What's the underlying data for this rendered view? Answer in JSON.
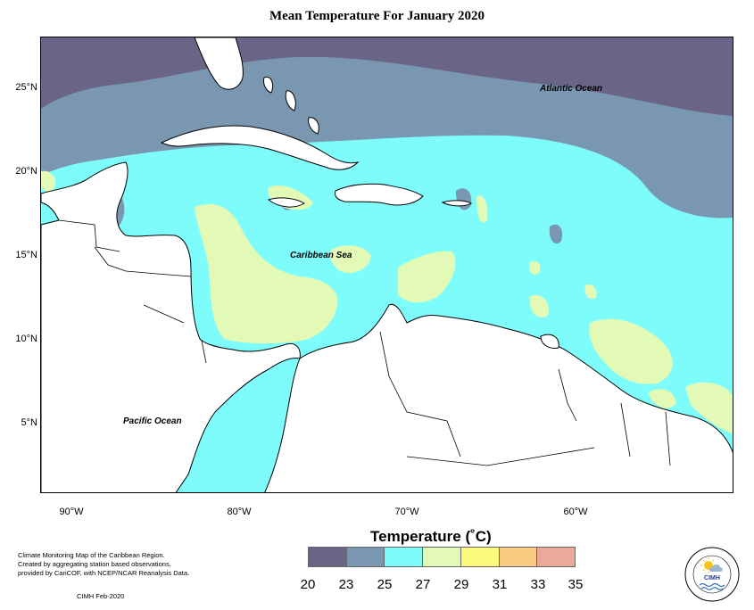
{
  "title": "Mean Temperature For January 2020",
  "colors": {
    "c20_23": "#6a6586",
    "c23_25": "#7a97b2",
    "c25_27": "#7efcfc",
    "c27_29": "#e3fab7",
    "c29_31": "#fbfa7f",
    "c31_33": "#fbcb84",
    "c33_35": "#eca99a",
    "land": "#ffffff",
    "border": "#000000"
  },
  "lat_labels": [
    "25°N",
    "20°N",
    "15°N",
    "10°N",
    "5°N"
  ],
  "lon_labels": [
    "90°W",
    "80°W",
    "70°W",
    "60°W"
  ],
  "ocean_labels": {
    "atlantic": "Atlantic Ocean",
    "caribbean": "Caribbean Sea",
    "pacific": "Pacific Ocean"
  },
  "legend": {
    "title": "Temperature (˚C)",
    "ticks": [
      "20",
      "23",
      "25",
      "27",
      "29",
      "31",
      "33",
      "35"
    ]
  },
  "note": {
    "lines": [
      "Climate Monitoring Map of the Caribbean Region.",
      "Created by aggregating station based observations,",
      "provided by CariCOF, with NCEP/NCAR Reanalysis Data."
    ],
    "date": "CIMH Feb-2020"
  },
  "logo": {
    "text": "CIMH",
    "ring_text": "Caribbean Institute for Meteorology and Hydrology"
  }
}
